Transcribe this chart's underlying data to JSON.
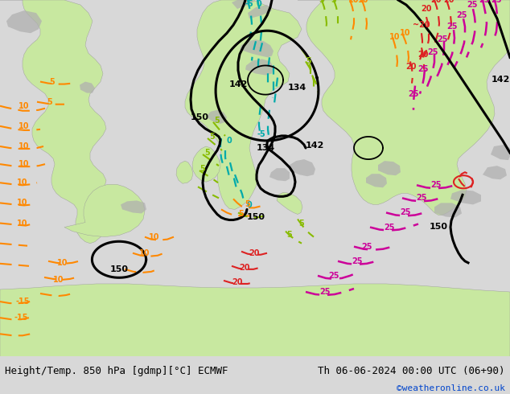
{
  "title_left": "Height/Temp. 850 hPa [gdmp][°C] ECMWF",
  "title_right": "Th 06-06-2024 00:00 UTC (06+90)",
  "watermark": "©weatheronline.co.uk",
  "ocean_color": "#e8e8e8",
  "land_green_color": "#c8e8a0",
  "land_light_green": "#d8f0b0",
  "land_gray_color": "#b0b0b0",
  "black_color": "#000000",
  "teal_color": "#00aaaa",
  "orange_color": "#ff8800",
  "lime_color": "#88bb00",
  "red_color": "#dd2222",
  "magenta_color": "#cc0099",
  "bottom_bar_color": "#d8d8d8",
  "title_fontsize": 9,
  "watermark_color": "#0044cc",
  "watermark_fontsize": 8,
  "figsize": [
    6.34,
    4.9
  ],
  "dpi": 100
}
